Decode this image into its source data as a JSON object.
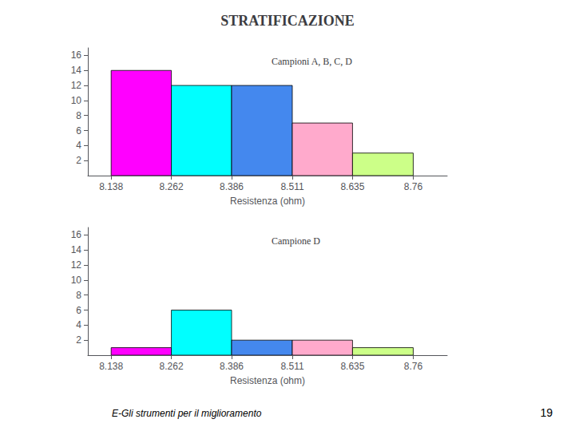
{
  "title": "STRATIFICAZIONE",
  "annotations": [
    "E-Gli strumenti per il miglioramento",
    "19"
  ],
  "chart_data": [
    {
      "type": "histogram",
      "title": "Campioni A, B, C, D",
      "xlabel": "Resistenza (ohm)",
      "bins": [
        8.138,
        8.262,
        8.386,
        8.511,
        8.635,
        8.76
      ],
      "values": [
        14,
        12,
        12,
        7,
        3
      ],
      "colors": [
        "#ff00ff",
        "#00ffff",
        "#4488ee",
        "#ffaacc",
        "#ccff88"
      ],
      "xlim": [
        8.09,
        8.83
      ],
      "xticks": [
        8.138,
        8.262,
        8.386,
        8.511,
        8.635,
        8.76
      ],
      "ylim": [
        0,
        17
      ],
      "yticks": [
        2,
        4,
        6,
        8,
        10,
        12,
        14,
        16
      ],
      "grid": false
    },
    {
      "type": "histogram",
      "title": "Campione D",
      "xlabel": "Resistenza (ohm)",
      "bins": [
        8.138,
        8.262,
        8.386,
        8.511,
        8.635,
        8.76
      ],
      "values": [
        1,
        6,
        2,
        2,
        1
      ],
      "colors": [
        "#ff00ff",
        "#00ffff",
        "#4488ee",
        "#ffaacc",
        "#ccff88"
      ],
      "xlim": [
        8.09,
        8.83
      ],
      "xticks": [
        8.138,
        8.262,
        8.386,
        8.511,
        8.635,
        8.76
      ],
      "ylim": [
        0,
        17
      ],
      "yticks": [
        2,
        4,
        6,
        8,
        10,
        12,
        14,
        16
      ],
      "grid": false
    }
  ]
}
